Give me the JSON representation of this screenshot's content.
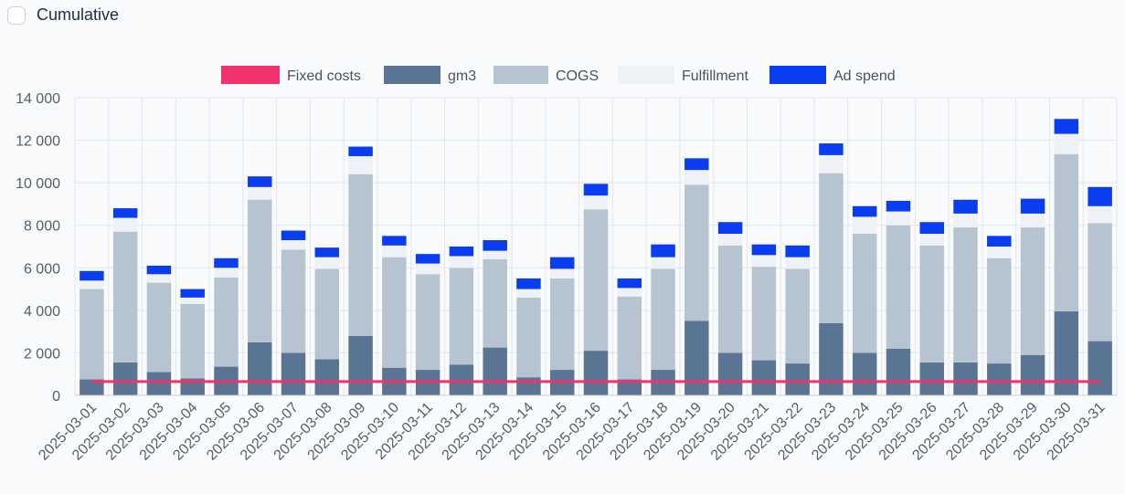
{
  "controls": {
    "cumulative_label": "Cumulative",
    "cumulative_checked": false
  },
  "colors": {
    "fixed_costs": "#f0336e",
    "gm3": "#5a7593",
    "cogs": "#b6c4d2",
    "fulfillment": "#eef1f5",
    "ad_spend": "#0a3df0",
    "grid": "#e2e6ec",
    "axis": "#555e6b"
  },
  "chart_data": {
    "type": "bar",
    "stacked": true,
    "legend_position": "top",
    "grid": true,
    "ylim": [
      0,
      14000
    ],
    "yticks": [
      0,
      2000,
      4000,
      6000,
      8000,
      10000,
      12000,
      14000
    ],
    "ytick_labels": [
      "0",
      "2 000",
      "4 000",
      "6 000",
      "8 000",
      "10 000",
      "12 000",
      "14 000"
    ],
    "categories": [
      "2025-03-01",
      "2025-03-02",
      "2025-03-03",
      "2025-03-04",
      "2025-03-05",
      "2025-03-06",
      "2025-03-07",
      "2025-03-08",
      "2025-03-09",
      "2025-03-10",
      "2025-03-11",
      "2025-03-12",
      "2025-03-13",
      "2025-03-14",
      "2025-03-15",
      "2025-03-16",
      "2025-03-17",
      "2025-03-18",
      "2025-03-19",
      "2025-03-20",
      "2025-03-21",
      "2025-03-22",
      "2025-03-23",
      "2025-03-24",
      "2025-03-25",
      "2025-03-26",
      "2025-03-27",
      "2025-03-28",
      "2025-03-29",
      "2025-03-30",
      "2025-03-31"
    ],
    "series": [
      {
        "name": "Fixed costs",
        "kind": "line",
        "color_key": "fixed_costs",
        "values": [
          650,
          650,
          650,
          650,
          650,
          650,
          650,
          650,
          650,
          650,
          650,
          650,
          650,
          650,
          650,
          650,
          650,
          650,
          650,
          650,
          650,
          650,
          650,
          650,
          650,
          650,
          650,
          650,
          650,
          650,
          650
        ]
      },
      {
        "name": "gm3",
        "kind": "bar",
        "color_key": "gm3",
        "values": [
          750,
          1550,
          1100,
          800,
          1350,
          2500,
          2000,
          1700,
          2800,
          1300,
          1200,
          1450,
          2250,
          850,
          1200,
          2100,
          750,
          1200,
          3500,
          2000,
          1650,
          1500,
          3400,
          2000,
          2200,
          1550,
          1550,
          1500,
          1900,
          3950,
          2550
        ]
      },
      {
        "name": "COGS",
        "kind": "bar",
        "color_key": "cogs",
        "values": [
          4250,
          6150,
          4200,
          3500,
          4200,
          6700,
          4850,
          4250,
          7600,
          5200,
          4500,
          4550,
          4150,
          3750,
          4300,
          6650,
          3900,
          4750,
          6400,
          5050,
          4400,
          4450,
          7050,
          5600,
          5800,
          5500,
          6350,
          4950,
          6000,
          7400,
          5550
        ]
      },
      {
        "name": "Fulfillment",
        "kind": "bar",
        "color_key": "fulfillment",
        "values": [
          400,
          650,
          400,
          300,
          450,
          600,
          450,
          550,
          850,
          550,
          500,
          550,
          400,
          400,
          450,
          650,
          400,
          550,
          700,
          550,
          550,
          550,
          850,
          800,
          650,
          550,
          650,
          550,
          650,
          950,
          800
        ]
      },
      {
        "name": "Ad spend",
        "kind": "bar",
        "color_key": "ad_spend",
        "values": [
          450,
          450,
          400,
          400,
          450,
          500,
          450,
          450,
          450,
          450,
          450,
          450,
          500,
          500,
          550,
          550,
          450,
          600,
          550,
          550,
          500,
          550,
          550,
          500,
          500,
          550,
          650,
          500,
          700,
          700,
          900
        ]
      }
    ]
  }
}
